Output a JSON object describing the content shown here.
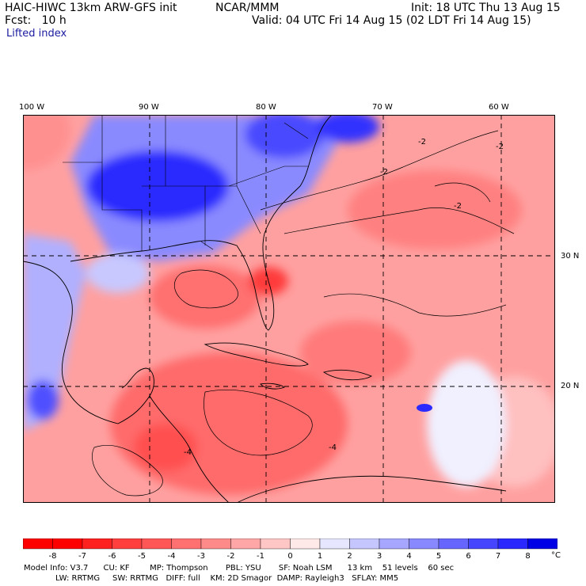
{
  "header": {
    "model": "HAIC-HIWC 13km ARW-GFS init",
    "org": "NCAR/MMM",
    "fcst": "Fcst:   10 h",
    "init": "Init: 18 UTC Thu 13 Aug 15",
    "valid": "Valid: 04 UTC Fri 14 Aug 15 (02 LDT Fri 14 Aug 15)",
    "field": "Lifted index"
  },
  "lon_labels": [
    "100 W",
    "90 W",
    "80 W",
    "70 W",
    "60 W"
  ],
  "lat_labels": [
    "30 N",
    "20 N"
  ],
  "contour_labels": [
    "-2",
    "-2",
    "-2",
    "-2",
    "-4",
    "-4"
  ],
  "colorbar": {
    "labels": [
      "-8",
      "-7",
      "-6",
      "-5",
      "-4",
      "-3",
      "-2",
      "-1",
      "0",
      "1",
      "2",
      "3",
      "4",
      "5",
      "6",
      "7",
      "8"
    ],
    "unit": "°C",
    "colors": [
      "#ff0000",
      "#ff2020",
      "#ff3e3e",
      "#ff5656",
      "#ff7070",
      "#ff8a8a",
      "#ffa6a6",
      "#ffc6c6",
      "#ffe8e8",
      "#e6e6ff",
      "#c6c6ff",
      "#a6a6ff",
      "#8888ff",
      "#6666ff",
      "#4646ff",
      "#2828ff",
      "#0000e6"
    ]
  },
  "model_info": {
    "line1": "Model Info: V3.7      CU: KF        MP: Thompson       PBL: YSU       SF: Noah LSM      13 km    51 levels    60 sec",
    "line2": "LW: RRTMG     SW: RRTMG   DIFF: full    KM: 2D Smagor  DAMP: Rayleigh3   SFLAY: MM5"
  }
}
